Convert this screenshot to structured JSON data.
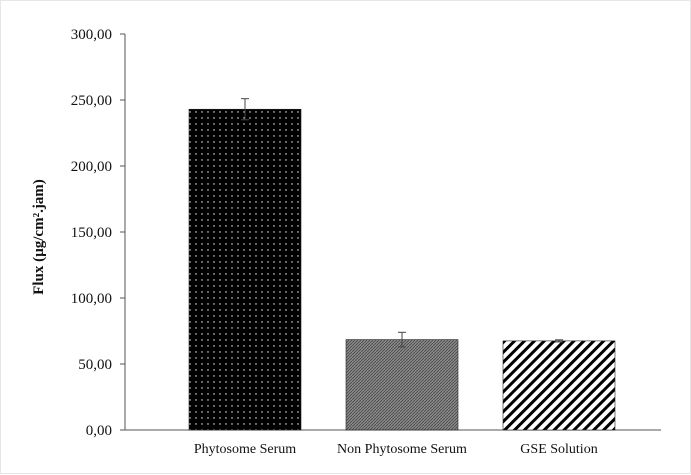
{
  "chart_data": {
    "type": "bar",
    "title": "",
    "xlabel": "",
    "ylabel": "Flux (µg/cm².jam)",
    "ylim": [
      0,
      300
    ],
    "yticks": [
      "0,00",
      "50,00",
      "100,00",
      "150,00",
      "200,00",
      "250,00",
      "300,00"
    ],
    "categories": [
      "Phytosome Serum",
      "Non Phytosome Serum",
      "GSE Solution"
    ],
    "values": [
      243.0,
      68.5,
      67.5
    ],
    "errors": [
      8.0,
      5.5,
      0.8
    ],
    "grid": false,
    "legend": "none",
    "bar_styles": [
      "dots-on-black",
      "dense-gray-hatch",
      "diagonal-stripes"
    ],
    "colors": {
      "axis": "#555555",
      "bar_dark": "#000000",
      "bar_gray": "#777777",
      "stripe": "#000000"
    }
  }
}
